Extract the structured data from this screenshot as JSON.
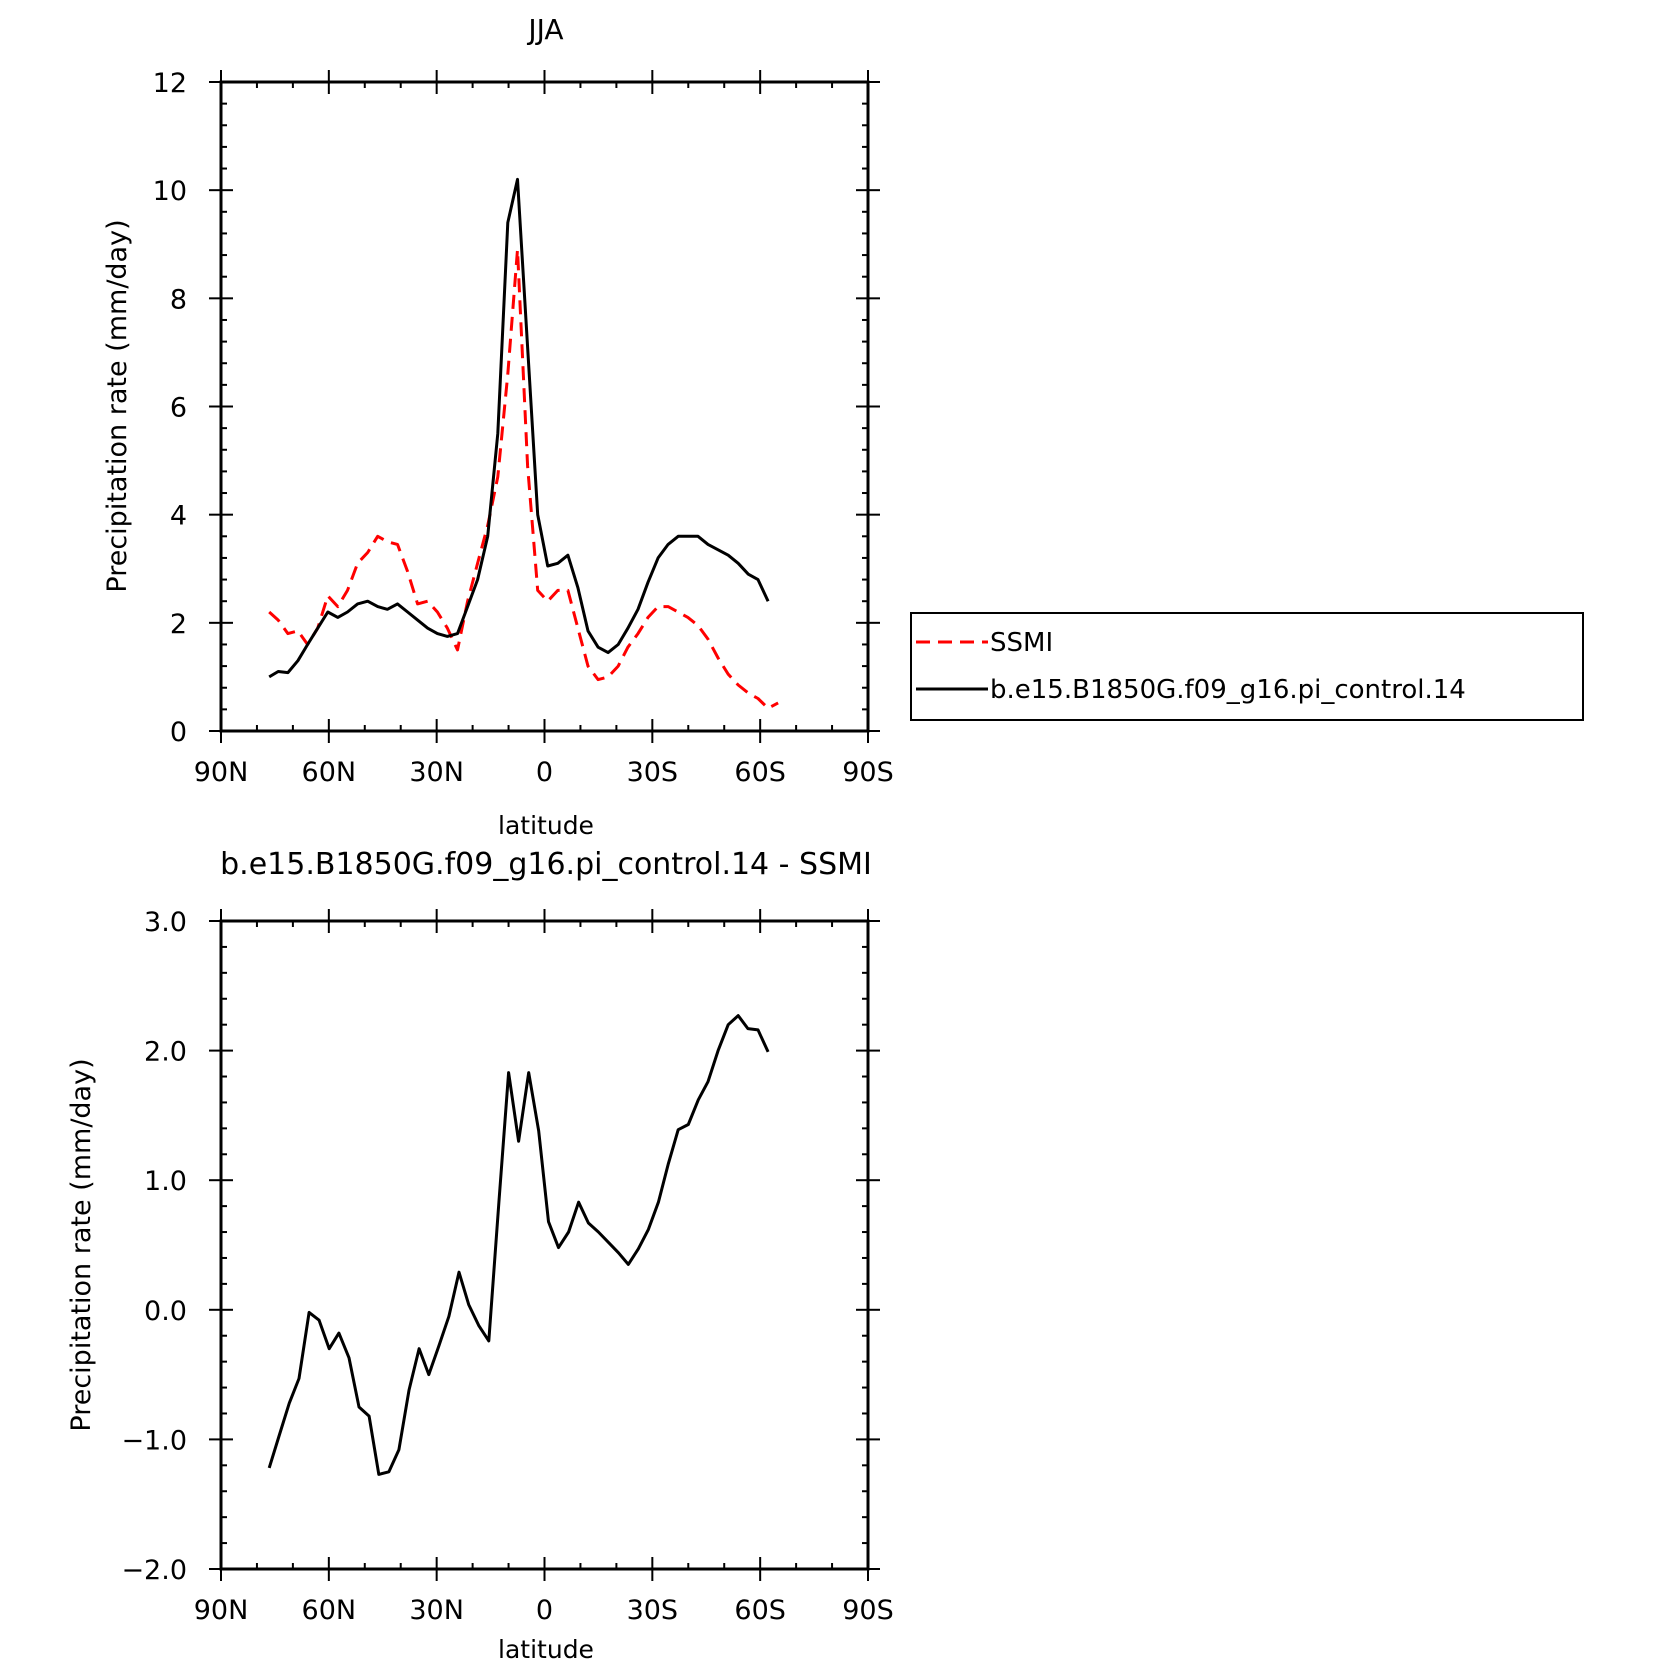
{
  "chart_data": [
    {
      "type": "line",
      "title": "JJA",
      "xlabel": "latitude",
      "ylabel": "Precipitation rate (mm/day)",
      "xlim": [
        -90,
        90
      ],
      "ylim": [
        0,
        12
      ],
      "x_ticks": [
        -90,
        -60,
        -30,
        0,
        30,
        60,
        90
      ],
      "x_tick_labels": [
        "90N",
        "60N",
        "30N",
        "0",
        "30S",
        "60S",
        "90S"
      ],
      "y_ticks": [
        0,
        2,
        4,
        6,
        8,
        10,
        12
      ],
      "y_tick_labels": [
        "0",
        "2",
        "4",
        "6",
        "8",
        "10",
        "12"
      ],
      "legend_position": "right",
      "series": [
        {
          "name": "SSMI",
          "color": "#ff0000",
          "dash": true,
          "x": [
            -76.6,
            -74.1,
            -71.4,
            -68.6,
            -65.9,
            -63.1,
            -60.3,
            -57.5,
            -54.8,
            -52,
            -49.2,
            -46.4,
            -43.7,
            -40.9,
            -38.1,
            -35.3,
            -32.5,
            -29.8,
            -27,
            -24.2,
            -21.4,
            -18.6,
            -15.8,
            -13,
            -10.2,
            -7.5,
            -4.7,
            -1.9,
            0.9,
            3.7,
            6.5,
            9.3,
            12.1,
            14.9,
            17.7,
            20.5,
            23.2,
            26,
            28.8,
            31.6,
            34.4,
            37.2,
            39.9,
            42.7,
            45.5,
            48.3,
            51.1,
            53.9,
            56.7,
            59.4,
            62.2,
            65.0
          ],
          "y": [
            2.2,
            2.05,
            1.8,
            1.85,
            1.6,
            1.9,
            2.5,
            2.3,
            2.6,
            3.1,
            3.3,
            3.6,
            3.5,
            3.45,
            2.95,
            2.35,
            2.4,
            2.2,
            1.9,
            1.5,
            2.4,
            3.1,
            3.8,
            4.7,
            6.6,
            8.9,
            4.9,
            2.6,
            2.4,
            2.6,
            2.6,
            1.9,
            1.2,
            0.95,
            1.0,
            1.2,
            1.55,
            1.8,
            2.1,
            2.3,
            2.3,
            2.2,
            2.1,
            1.95,
            1.7,
            1.35,
            1.05,
            0.85,
            0.7,
            0.6,
            0.42,
            0.52
          ]
        },
        {
          "name": "b.e15.B1850G.f09_g16.pi_control.14",
          "color": "#000000",
          "dash": false,
          "x": [
            -76.6,
            -74.1,
            -71.4,
            -68.6,
            -65.9,
            -63.1,
            -60.3,
            -57.5,
            -54.8,
            -52,
            -49.2,
            -46.4,
            -43.7,
            -40.9,
            -38.1,
            -35.3,
            -32.5,
            -29.8,
            -27,
            -24.2,
            -21.4,
            -18.6,
            -15.8,
            -13,
            -10.2,
            -7.5,
            -4.7,
            -1.9,
            0.9,
            3.7,
            6.5,
            9.3,
            12.1,
            14.9,
            17.7,
            20.5,
            23.2,
            26,
            28.8,
            31.6,
            34.4,
            37.2,
            39.9,
            42.7,
            45.5,
            48.3,
            51.1,
            53.9,
            56.7,
            59.4,
            62.2
          ],
          "y": [
            1.0,
            1.1,
            1.08,
            1.3,
            1.6,
            1.9,
            2.2,
            2.1,
            2.2,
            2.35,
            2.4,
            2.3,
            2.25,
            2.35,
            2.2,
            2.05,
            1.9,
            1.8,
            1.75,
            1.8,
            2.3,
            2.8,
            3.6,
            5.5,
            9.4,
            10.2,
            7.1,
            4.0,
            3.05,
            3.1,
            3.25,
            2.65,
            1.85,
            1.55,
            1.45,
            1.6,
            1.9,
            2.25,
            2.75,
            3.2,
            3.45,
            3.6,
            3.6,
            3.6,
            3.45,
            3.35,
            3.25,
            3.1,
            2.9,
            2.8,
            2.4
          ]
        }
      ]
    },
    {
      "type": "line",
      "title": "b.e15.B1850G.f09_g16.pi_control.14 - SSMI",
      "xlabel": "latitude",
      "ylabel": "Precipitation rate (mm/day)",
      "xlim": [
        -90,
        90
      ],
      "ylim": [
        -2.0,
        3.0
      ],
      "x_ticks": [
        -90,
        -60,
        -30,
        0,
        30,
        60,
        90
      ],
      "x_tick_labels": [
        "90N",
        "60N",
        "30N",
        "0",
        "30S",
        "60S",
        "90S"
      ],
      "y_ticks": [
        -2.0,
        -1.0,
        0.0,
        1.0,
        2.0,
        3.0
      ],
      "y_tick_labels": [
        "−2.0",
        "−1.0",
        "0.0",
        "1.0",
        "2.0",
        "3.0"
      ],
      "series": [
        {
          "color": "#000000",
          "x": [
            -76.6,
            -73.8,
            -71.0,
            -68.3,
            -65.5,
            -62.7,
            -59.9,
            -57.2,
            -54.4,
            -51.6,
            -48.8,
            -46.1,
            -43.3,
            -40.5,
            -37.7,
            -34.9,
            -32.2,
            -29.4,
            -26.6,
            -23.8,
            -21.1,
            -18.3,
            -15.5,
            -12.7,
            -10.0,
            -7.2,
            -4.4,
            -1.6,
            1.1,
            3.9,
            6.7,
            9.5,
            12.2,
            15.0,
            17.8,
            20.6,
            23.3,
            26.1,
            28.9,
            31.7,
            34.4,
            37.2,
            40.0,
            42.8,
            45.5,
            48.3,
            51.1,
            53.9,
            56.6,
            59.4,
            62.2
          ],
          "y": [
            -1.22,
            -0.97,
            -0.72,
            -0.53,
            -0.02,
            -0.08,
            -0.3,
            -0.18,
            -0.37,
            -0.75,
            -0.82,
            -1.27,
            -1.25,
            -1.08,
            -0.62,
            -0.3,
            -0.5,
            -0.28,
            -0.05,
            0.29,
            0.04,
            -0.12,
            -0.24,
            0.83,
            1.83,
            1.3,
            1.83,
            1.38,
            0.68,
            0.48,
            0.6,
            0.83,
            0.67,
            0.6,
            0.52,
            0.44,
            0.35,
            0.47,
            0.62,
            0.83,
            1.12,
            1.39,
            1.43,
            1.62,
            1.76,
            2.0,
            2.2,
            2.27,
            2.17,
            2.16,
            1.99
          ]
        }
      ]
    }
  ],
  "legend": {
    "entries": [
      {
        "label": "SSMI",
        "color": "#ff0000",
        "dash": true
      },
      {
        "label": "b.e15.B1850G.f09_g16.pi_control.14",
        "color": "#000000",
        "dash": false
      }
    ]
  }
}
